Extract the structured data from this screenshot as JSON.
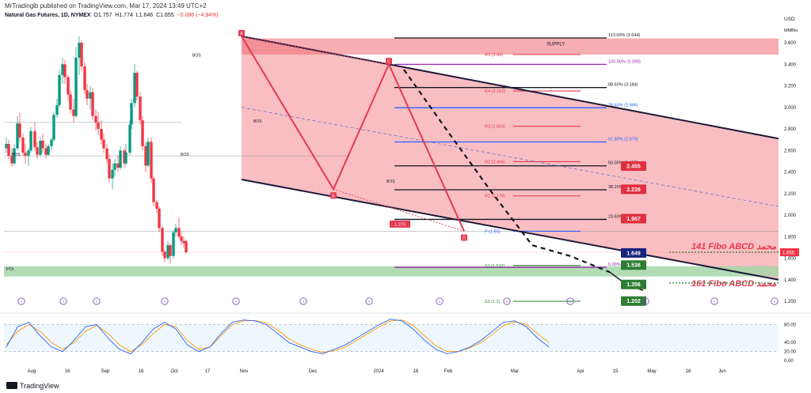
{
  "header": {
    "publisher": "MrTradinglb published on TradingView.com, Mar 17, 2024 13:49 UTC+2",
    "instrument": "Natural Gas Futures, 1D, NYMEX",
    "ohlc": {
      "o": "O1.757",
      "h": "H1.774",
      "l": "L1.646",
      "c": "C1.655",
      "chg": "−0.086 (−4.94%)"
    },
    "currency": "USD",
    "unit": "MMBtu",
    "brand": "TradingView"
  },
  "colors": {
    "up": "#089981",
    "down": "#f23645",
    "channel": "#1e1b3a",
    "zone_red": "#f7a8ad",
    "zone_green": "#a5d6a7",
    "abcd": "#e53950"
  },
  "chart_data": {
    "type": "candlestick",
    "y_axis": {
      "min": 1.2,
      "max": 3.6,
      "ticks": [
        "1.200",
        "1.400",
        "1.600",
        "1.800",
        "2.000",
        "2.200",
        "2.400",
        "2.600",
        "2.800",
        "3.000",
        "3.200",
        "3.400",
        "3.600"
      ]
    },
    "x_axis": {
      "ticks": [
        "Aug",
        "16",
        "Sep",
        "16",
        "Oct",
        "17",
        "Nov",
        "Dec",
        "2024",
        "16",
        "Feb",
        "Mar",
        "Apr",
        "15",
        "May",
        "16",
        "Jun"
      ]
    },
    "price_series": [
      [
        "2023-07-31",
        2.62,
        2.72,
        2.58,
        2.66
      ],
      [
        "2023-08-03",
        2.66,
        2.7,
        2.52,
        2.55
      ],
      [
        "2023-08-07",
        2.55,
        2.62,
        2.45,
        2.48
      ],
      [
        "2023-08-10",
        2.48,
        2.66,
        2.46,
        2.62
      ],
      [
        "2023-08-14",
        2.62,
        2.92,
        2.6,
        2.85
      ],
      [
        "2023-08-17",
        2.85,
        2.95,
        2.68,
        2.72
      ],
      [
        "2023-08-21",
        2.72,
        2.76,
        2.55,
        2.58
      ],
      [
        "2023-08-24",
        2.58,
        2.66,
        2.48,
        2.55
      ],
      [
        "2023-08-28",
        2.55,
        2.62,
        2.46,
        2.6
      ],
      [
        "2023-08-31",
        2.6,
        2.82,
        2.58,
        2.78
      ],
      [
        "2023-09-05",
        2.78,
        2.86,
        2.6,
        2.63
      ],
      [
        "2023-09-08",
        2.63,
        2.68,
        2.52,
        2.56
      ],
      [
        "2023-09-12",
        2.56,
        2.72,
        2.54,
        2.69
      ],
      [
        "2023-09-15",
        2.69,
        2.76,
        2.58,
        2.62
      ],
      [
        "2023-09-19",
        2.62,
        2.66,
        2.52,
        2.56
      ],
      [
        "2023-09-22",
        2.56,
        2.66,
        2.55,
        2.64
      ],
      [
        "2023-09-26",
        2.64,
        2.72,
        2.6,
        2.7
      ],
      [
        "2023-09-29",
        2.7,
        2.96,
        2.68,
        2.93
      ],
      [
        "2023-10-03",
        2.93,
        3.08,
        2.9,
        3.02
      ],
      [
        "2023-10-06",
        3.02,
        3.35,
        3.0,
        3.3
      ],
      [
        "2023-10-10",
        3.3,
        3.46,
        3.22,
        3.4
      ],
      [
        "2023-10-13",
        3.4,
        3.44,
        3.22,
        3.28
      ],
      [
        "2023-10-17",
        3.28,
        3.3,
        3.06,
        3.12
      ],
      [
        "2023-10-20",
        3.12,
        3.16,
        2.94,
        2.98
      ],
      [
        "2023-10-24",
        2.98,
        3.08,
        2.86,
        2.92
      ],
      [
        "2023-10-27",
        2.92,
        3.56,
        2.9,
        3.46
      ],
      [
        "2023-10-31",
        3.46,
        3.66,
        3.3,
        3.6
      ],
      [
        "2023-11-03",
        3.6,
        3.62,
        3.34,
        3.38
      ],
      [
        "2023-11-07",
        3.38,
        3.42,
        3.12,
        3.16
      ],
      [
        "2023-11-10",
        3.16,
        3.22,
        3.02,
        3.08
      ],
      [
        "2023-11-14",
        3.08,
        3.2,
        2.98,
        3.14
      ],
      [
        "2023-11-17",
        3.14,
        3.18,
        2.88,
        2.92
      ],
      [
        "2023-11-21",
        2.92,
        2.98,
        2.78,
        2.86
      ],
      [
        "2023-11-24",
        2.86,
        2.96,
        2.74,
        2.8
      ],
      [
        "2023-11-28",
        2.8,
        2.88,
        2.66,
        2.7
      ],
      [
        "2023-12-01",
        2.7,
        2.76,
        2.58,
        2.62
      ],
      [
        "2023-12-05",
        2.62,
        2.66,
        2.48,
        2.52
      ],
      [
        "2023-12-08",
        2.52,
        2.56,
        2.3,
        2.34
      ],
      [
        "2023-12-12",
        2.34,
        2.48,
        2.24,
        2.42
      ],
      [
        "2023-12-15",
        2.42,
        2.52,
        2.36,
        2.48
      ],
      [
        "2023-12-19",
        2.48,
        2.56,
        2.4,
        2.44
      ],
      [
        "2023-12-22",
        2.44,
        2.64,
        2.42,
        2.6
      ],
      [
        "2023-12-27",
        2.6,
        2.62,
        2.44,
        2.48
      ],
      [
        "2023-12-29",
        2.48,
        2.66,
        2.46,
        2.58
      ],
      [
        "2024-01-03",
        2.58,
        2.88,
        2.56,
        2.84
      ],
      [
        "2024-01-05",
        2.84,
        3.08,
        2.8,
        3.04
      ],
      [
        "2024-01-09",
        3.04,
        3.4,
        3.0,
        3.32
      ],
      [
        "2024-01-12",
        3.32,
        3.34,
        3.06,
        3.1
      ],
      [
        "2024-01-16",
        3.1,
        3.14,
        2.84,
        2.88
      ],
      [
        "2024-01-19",
        2.88,
        2.92,
        2.6,
        2.64
      ],
      [
        "2024-01-23",
        2.64,
        2.68,
        2.4,
        2.46
      ],
      [
        "2024-01-26",
        2.46,
        2.72,
        2.44,
        2.68
      ],
      [
        "2024-01-30",
        2.68,
        2.72,
        2.3,
        2.34
      ],
      [
        "2024-02-02",
        2.34,
        2.36,
        2.08,
        2.12
      ],
      [
        "2024-02-06",
        2.12,
        2.14,
        2.02,
        2.06
      ],
      [
        "2024-02-09",
        2.06,
        2.08,
        1.84,
        1.88
      ],
      [
        "2024-02-13",
        1.88,
        1.9,
        1.62,
        1.66
      ],
      [
        "2024-02-16",
        1.66,
        1.68,
        1.56,
        1.6
      ],
      [
        "2024-02-20",
        1.6,
        1.76,
        1.58,
        1.72
      ],
      [
        "2024-02-23",
        1.72,
        1.74,
        1.55,
        1.62
      ],
      [
        "2024-02-27",
        1.62,
        1.86,
        1.6,
        1.84
      ],
      [
        "2024-03-01",
        1.84,
        1.92,
        1.8,
        1.88
      ],
      [
        "2024-03-05",
        1.88,
        1.98,
        1.78,
        1.8
      ],
      [
        "2024-03-08",
        1.8,
        1.84,
        1.72,
        1.76
      ],
      [
        "2024-03-11",
        1.76,
        1.8,
        1.7,
        1.74
      ],
      [
        "2024-03-14",
        1.757,
        1.774,
        1.646,
        1.655
      ]
    ],
    "stoch_k": [
      30,
      75,
      85,
      55,
      30,
      20,
      45,
      75,
      80,
      50,
      25,
      15,
      40,
      70,
      85,
      70,
      35,
      20,
      30,
      60,
      85,
      90,
      88,
      80,
      60,
      40,
      30,
      20,
      15,
      25,
      35,
      50,
      65,
      80,
      92,
      88,
      70,
      45,
      25,
      15,
      20,
      30,
      45,
      65,
      85,
      88,
      75,
      50,
      30
    ],
    "stoch_d": [
      35,
      65,
      80,
      65,
      40,
      25,
      40,
      65,
      78,
      60,
      35,
      20,
      35,
      60,
      80,
      75,
      45,
      25,
      30,
      55,
      80,
      88,
      89,
      84,
      68,
      48,
      35,
      25,
      18,
      22,
      30,
      45,
      60,
      75,
      88,
      90,
      78,
      55,
      33,
      20,
      20,
      28,
      40,
      58,
      78,
      86,
      80,
      60,
      40
    ],
    "stoch_axis": [
      "80.00",
      "40.00",
      "20.00",
      "0.00"
    ],
    "fibonacci": [
      {
        "label": "113.00% (3.644)",
        "value": 3.644,
        "color": "#131722"
      },
      {
        "label": "100.00% (3.399)",
        "value": 3.399,
        "color": "#9c27b0"
      },
      {
        "label": "88.60% (3.184)",
        "value": 3.184,
        "color": "#131722"
      },
      {
        "label": "78.60% (2.996)",
        "value": 2.996,
        "color": "#2962ff"
      },
      {
        "label": "61.80% (2.679)",
        "value": 2.679,
        "color": "#2962ff"
      },
      {
        "label": "50.00% (2.457)",
        "value": 2.457,
        "color": "#131722"
      },
      {
        "label": "38.20% (2.235)",
        "value": 2.235,
        "color": "#131722"
      },
      {
        "label": "23.60% (1.960)",
        "value": 1.96,
        "color": "#131722"
      },
      {
        "label": "0.00% (1.515)",
        "value": 1.515,
        "color": "#9c27b0"
      }
    ],
    "pivots": [
      {
        "label": "R5 (3.49)",
        "value": 3.49
      },
      {
        "label": "R4 (3.152)",
        "value": 3.152
      },
      {
        "label": "R3 (2.824)",
        "value": 2.824
      },
      {
        "label": "R2 (2.496)",
        "value": 2.496
      },
      {
        "label": "R1 (2.178)",
        "value": 2.178
      },
      {
        "label": "P (1.85)",
        "value": 1.85
      },
      {
        "label": "S1 (1.532)",
        "value": 1.532
      },
      {
        "label": "S2 (1.2)",
        "value": 1.2
      }
    ],
    "price_tags": [
      {
        "label": "2.455",
        "value": 2.455,
        "color": "#e0303f"
      },
      {
        "label": "2.239",
        "value": 2.239,
        "color": "#e0303f"
      },
      {
        "label": "1.967",
        "value": 1.967,
        "color": "#e0303f"
      },
      {
        "label": "1.649",
        "value": 1.649,
        "color": "#1a237e"
      },
      {
        "label": "1.536",
        "value": 1.536,
        "color": "#2e7d32"
      },
      {
        "label": "1.356",
        "value": 1.356,
        "color": "#2e7d32"
      },
      {
        "label": "1.202",
        "value": 1.202,
        "color": "#2e7d32"
      }
    ],
    "last_price": {
      "label": "1.655",
      "value": 1.655
    },
    "zones": {
      "supply": "SUPPLY",
      "poi": "POI"
    },
    "abcd_points": [
      "A",
      "B",
      "C",
      "D"
    ],
    "abcd_value": "1.273",
    "bos_labels": [
      "BOS",
      "BOS",
      "BOS",
      "BOS",
      "BOS"
    ],
    "annotations": [
      {
        "text": "141 Fibo ABCD محمد",
        "value": 1.655,
        "color": "#e53950"
      },
      {
        "text": "161 Fibo ABCD محمد",
        "value": 1.37,
        "color": "#e53950"
      }
    ]
  }
}
